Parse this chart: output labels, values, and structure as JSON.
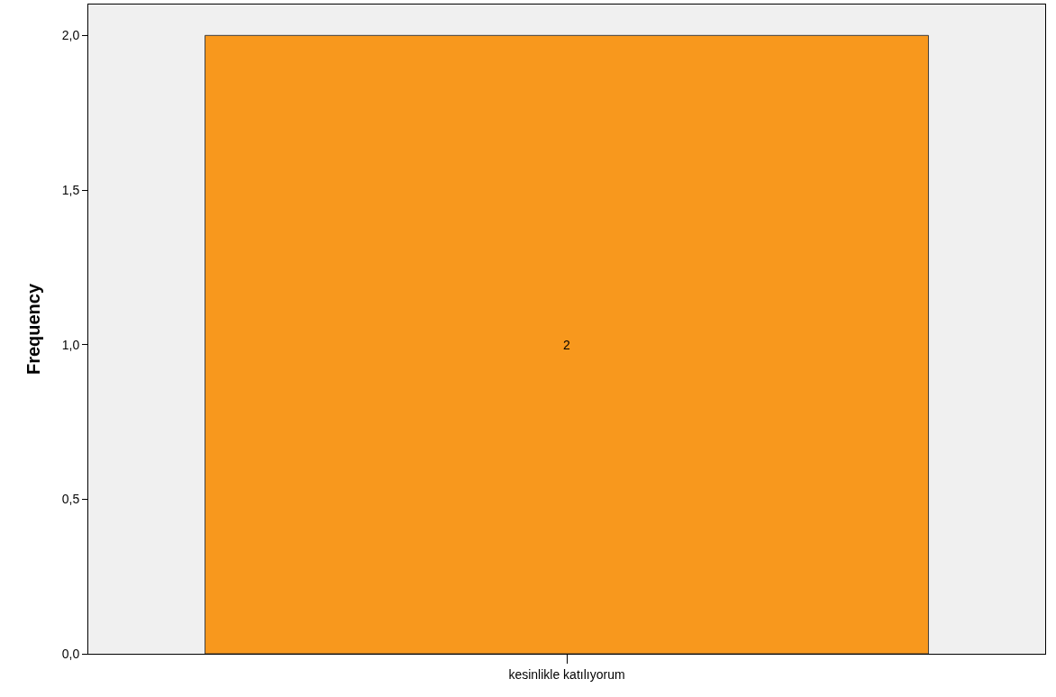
{
  "chart_data": {
    "type": "bar",
    "ylabel": "Frequency",
    "categories": [
      "kesinlikle katılıyorum"
    ],
    "values": [
      2
    ],
    "color": "#f8981d",
    "data_labels": true,
    "grid": false,
    "ylim": [
      0,
      2.1
    ],
    "yticks": [
      {
        "value": 0,
        "label": "0,0"
      },
      {
        "value": 0.5,
        "label": "0,5"
      },
      {
        "value": 1,
        "label": "1,0"
      },
      {
        "value": 1.5,
        "label": "1,5"
      },
      {
        "value": 2,
        "label": "2,0"
      }
    ]
  }
}
